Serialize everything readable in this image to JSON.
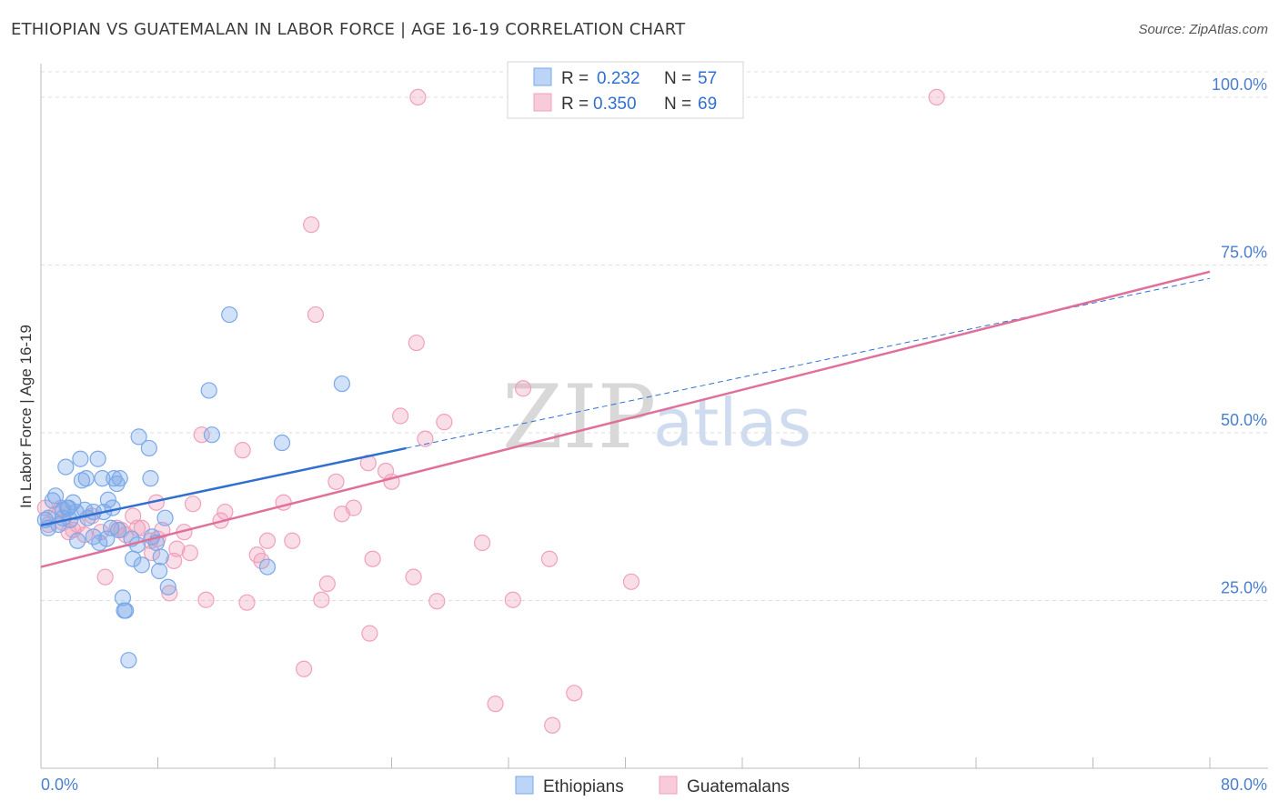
{
  "header": {
    "title": "ETHIOPIAN VS GUATEMALAN IN LABOR FORCE | AGE 16-19 CORRELATION CHART",
    "source": "Source: ZipAtlas.com"
  },
  "watermark": {
    "zip": "ZIP",
    "atlas": "atlas"
  },
  "colors": {
    "blue": "#7aa8e8",
    "blue_line": "#2f6fd0",
    "pink": "#f0a0bb",
    "pink_line": "#e0709a",
    "tick_text": "#4a7fd0"
  },
  "legend": {
    "rows": [
      {
        "r_label": "R = ",
        "r_value": "0.232",
        "n_label": "N = ",
        "n_value": "57",
        "color": "blue"
      },
      {
        "r_label": "R = ",
        "r_value": "0.350",
        "n_label": "N = ",
        "n_value": "69",
        "color": "pink"
      }
    ]
  },
  "bottom_legend": [
    "Ethiopians",
    "Guatemalans"
  ],
  "chart_data": {
    "type": "scatter",
    "title": "ETHIOPIAN VS GUATEMALAN IN LABOR FORCE | AGE 16-19 CORRELATION CHART",
    "xlabel": "",
    "ylabel": "In Labor Force | Age 16-19",
    "xlim": [
      0,
      80
    ],
    "ylim": [
      0,
      105
    ],
    "x_tick_labels": [
      "0.0%",
      "80.0%"
    ],
    "y_ticks": [
      25,
      50,
      75,
      100
    ],
    "y_tick_labels": [
      "25.0%",
      "50.0%",
      "75.0%",
      "100.0%"
    ],
    "grid": true,
    "series": [
      {
        "name": "Ethiopians",
        "color": "#7aa8e8",
        "points": [
          [
            0.3,
            37.0
          ],
          [
            0.5,
            35.8
          ],
          [
            0.5,
            37.3
          ],
          [
            0.8,
            39.9
          ],
          [
            1.0,
            40.6
          ],
          [
            1.2,
            36.3
          ],
          [
            1.5,
            38.5
          ],
          [
            1.5,
            37.3
          ],
          [
            1.7,
            44.9
          ],
          [
            1.8,
            38.8
          ],
          [
            2.0,
            37.0
          ],
          [
            2.2,
            39.6
          ],
          [
            2.4,
            38.2
          ],
          [
            2.5,
            33.9
          ],
          [
            2.7,
            46.1
          ],
          [
            2.8,
            42.9
          ],
          [
            3.0,
            38.5
          ],
          [
            3.1,
            43.2
          ],
          [
            3.2,
            37.3
          ],
          [
            3.6,
            38.2
          ],
          [
            3.9,
            46.1
          ],
          [
            4.0,
            33.6
          ],
          [
            4.2,
            43.2
          ],
          [
            4.3,
            38.2
          ],
          [
            4.5,
            34.2
          ],
          [
            4.6,
            40.0
          ],
          [
            4.8,
            35.8
          ],
          [
            4.9,
            38.8
          ],
          [
            5.0,
            43.2
          ],
          [
            5.2,
            42.4
          ],
          [
            5.4,
            43.2
          ],
          [
            5.6,
            25.4
          ],
          [
            5.7,
            23.5
          ],
          [
            5.8,
            23.5
          ],
          [
            6.0,
            16.1
          ],
          [
            6.2,
            34.2
          ],
          [
            6.3,
            31.2
          ],
          [
            6.6,
            33.3
          ],
          [
            6.7,
            49.4
          ],
          [
            6.9,
            30.3
          ],
          [
            7.4,
            47.7
          ],
          [
            7.5,
            43.2
          ],
          [
            7.6,
            34.5
          ],
          [
            8.1,
            29.4
          ],
          [
            8.2,
            31.5
          ],
          [
            8.5,
            37.3
          ],
          [
            8.7,
            27.0
          ],
          [
            11.5,
            56.3
          ],
          [
            11.7,
            49.7
          ],
          [
            12.9,
            67.6
          ],
          [
            15.5,
            30.0
          ],
          [
            16.5,
            48.5
          ],
          [
            20.6,
            57.3
          ],
          [
            3.6,
            34.5
          ],
          [
            1.9,
            38.8
          ],
          [
            5.3,
            35.5
          ],
          [
            7.9,
            33.6
          ]
        ]
      },
      {
        "name": "Guatemalans",
        "color": "#f0a0bb",
        "points": [
          [
            0.3,
            38.8
          ],
          [
            0.5,
            36.3
          ],
          [
            1.0,
            37.9
          ],
          [
            1.4,
            38.8
          ],
          [
            1.5,
            36.6
          ],
          [
            1.9,
            35.2
          ],
          [
            2.2,
            35.5
          ],
          [
            2.5,
            36.3
          ],
          [
            3.0,
            34.8
          ],
          [
            3.5,
            37.6
          ],
          [
            4.1,
            35.2
          ],
          [
            4.4,
            28.5
          ],
          [
            5.2,
            35.8
          ],
          [
            5.5,
            35.5
          ],
          [
            5.8,
            34.8
          ],
          [
            6.3,
            37.6
          ],
          [
            6.6,
            35.8
          ],
          [
            6.9,
            35.8
          ],
          [
            7.5,
            33.9
          ],
          [
            7.6,
            32.1
          ],
          [
            7.9,
            39.6
          ],
          [
            8.0,
            34.2
          ],
          [
            8.3,
            35.5
          ],
          [
            8.8,
            26.1
          ],
          [
            9.1,
            30.9
          ],
          [
            9.3,
            32.7
          ],
          [
            9.8,
            35.2
          ],
          [
            10.2,
            32.1
          ],
          [
            10.4,
            39.4
          ],
          [
            11.0,
            49.7
          ],
          [
            11.3,
            25.1
          ],
          [
            12.3,
            36.9
          ],
          [
            12.6,
            38.2
          ],
          [
            13.8,
            47.4
          ],
          [
            14.8,
            31.8
          ],
          [
            15.1,
            30.9
          ],
          [
            15.5,
            33.9
          ],
          [
            16.6,
            39.6
          ],
          [
            17.2,
            33.9
          ],
          [
            18.0,
            14.8
          ],
          [
            18.5,
            81.0
          ],
          [
            18.8,
            67.6
          ],
          [
            19.2,
            25.1
          ],
          [
            19.6,
            27.5
          ],
          [
            20.2,
            42.7
          ],
          [
            20.6,
            37.9
          ],
          [
            21.4,
            38.8
          ],
          [
            22.4,
            45.5
          ],
          [
            22.5,
            20.1
          ],
          [
            22.7,
            31.2
          ],
          [
            23.6,
            44.3
          ],
          [
            24.0,
            42.7
          ],
          [
            24.6,
            52.5
          ],
          [
            25.5,
            28.5
          ],
          [
            25.7,
            63.4
          ],
          [
            25.8,
            100.0
          ],
          [
            26.3,
            49.1
          ],
          [
            27.1,
            24.9
          ],
          [
            27.6,
            51.6
          ],
          [
            30.2,
            33.6
          ],
          [
            31.1,
            9.6
          ],
          [
            32.3,
            25.1
          ],
          [
            33.0,
            56.6
          ],
          [
            34.8,
            31.2
          ],
          [
            35.0,
            6.4
          ],
          [
            36.5,
            11.2
          ],
          [
            40.4,
            27.8
          ],
          [
            61.3,
            100.0
          ],
          [
            14.1,
            24.7
          ]
        ]
      }
    ],
    "trend_lines": [
      {
        "series": "Ethiopians",
        "style": "solid",
        "x": [
          0,
          25
        ],
        "y": [
          36.2,
          47.7
        ]
      },
      {
        "series": "Ethiopians",
        "style": "dashed",
        "x": [
          25,
          80
        ],
        "y": [
          47.7,
          73.0
        ]
      },
      {
        "series": "Guatemalans",
        "style": "solid",
        "x": [
          0,
          80
        ],
        "y": [
          30.0,
          74.0
        ]
      }
    ]
  }
}
